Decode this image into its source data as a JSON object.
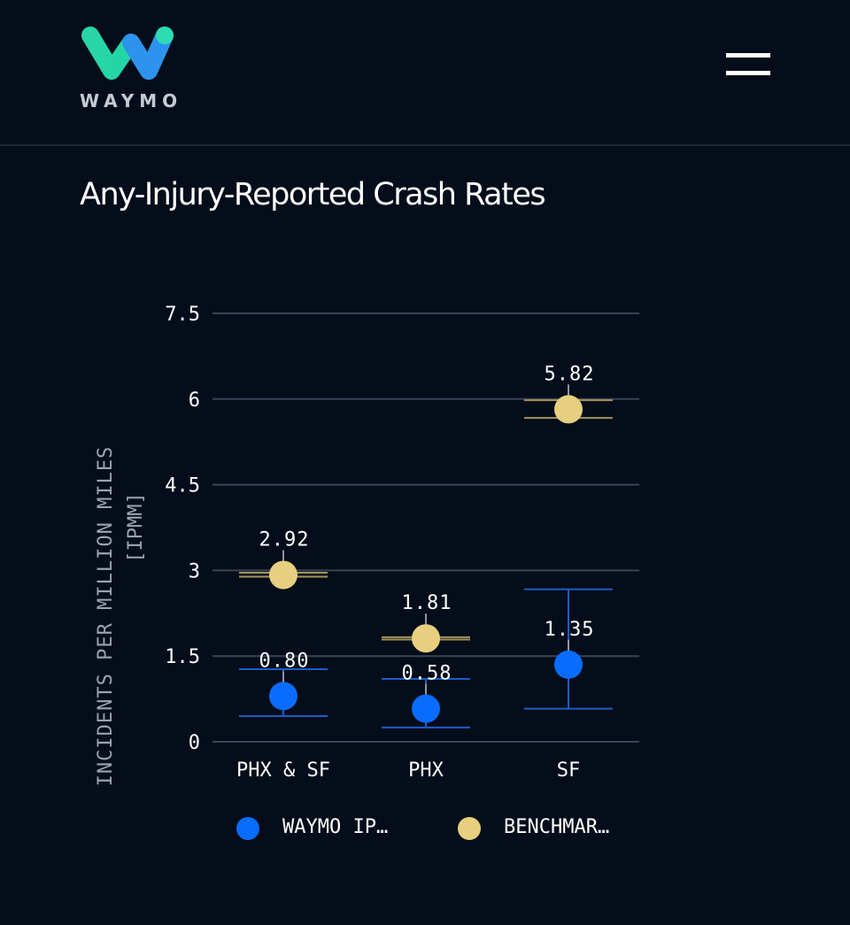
{
  "header": {
    "brand": "WAYMO",
    "menu_icon": "hamburger-menu-icon"
  },
  "page": {
    "title": "Any-Injury-Reported Crash Rates"
  },
  "colors": {
    "background": "#050d1a",
    "waymo": "#0a6cff",
    "benchmark": "#e6cf7f",
    "benchmark_ci": "#a4925a",
    "waymo_ci": "#1a5ec9",
    "grid": "#3a4456"
  },
  "chart_data": {
    "type": "scatter",
    "ylabel": "INCIDENTS PER MILLION MILES",
    "ylabel_sub": "[IPMM]",
    "categories": [
      "PHX & SF",
      "PHX",
      "SF"
    ],
    "yticks": [
      "7.5",
      "6",
      "4.5",
      "3",
      "1.5",
      "0"
    ],
    "ylim": [
      0,
      7.5
    ],
    "grid": true,
    "legend_position": "bottom",
    "series": [
      {
        "name": "WAYMO IP…",
        "values": [
          0.8,
          0.58,
          1.35
        ],
        "labels": [
          "0.80",
          "0.58",
          "1.35"
        ],
        "ci_low": [
          0.45,
          0.25,
          0.58
        ],
        "ci_high": [
          1.27,
          1.1,
          2.67
        ]
      },
      {
        "name": "BENCHMAR…",
        "values": [
          2.92,
          1.81,
          5.82
        ],
        "labels": [
          "2.92",
          "1.81",
          "5.82"
        ],
        "ci_low": [
          2.89,
          1.79,
          5.67
        ],
        "ci_high": [
          2.96,
          1.83,
          5.98
        ]
      }
    ]
  }
}
